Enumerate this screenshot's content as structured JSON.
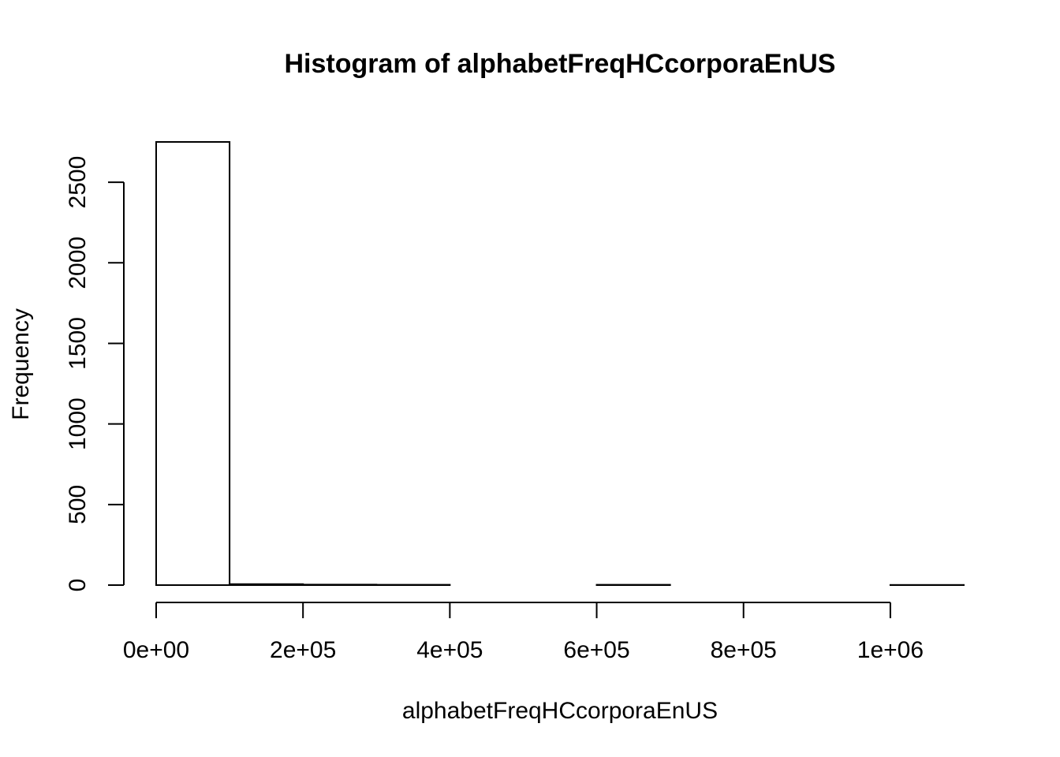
{
  "chart_data": {
    "type": "bar",
    "title": "Histogram of alphabetFreqHCcorporaEnUS",
    "xlabel": "alphabetFreqHCcorporaEnUS",
    "ylabel": "Frequency",
    "bin_width": 100000,
    "bins": [
      {
        "start": 0,
        "end": 100000,
        "count": 2750
      },
      {
        "start": 100000,
        "end": 200000,
        "count": 6
      },
      {
        "start": 200000,
        "end": 300000,
        "count": 3
      },
      {
        "start": 300000,
        "end": 400000,
        "count": 2
      },
      {
        "start": 400000,
        "end": 500000,
        "count": 0
      },
      {
        "start": 500000,
        "end": 600000,
        "count": 0
      },
      {
        "start": 600000,
        "end": 700000,
        "count": 2
      },
      {
        "start": 700000,
        "end": 800000,
        "count": 0
      },
      {
        "start": 800000,
        "end": 900000,
        "count": 0
      },
      {
        "start": 900000,
        "end": 1000000,
        "count": 0
      },
      {
        "start": 1000000,
        "end": 1100000,
        "count": 1
      }
    ],
    "xlim": [
      0,
      1100000
    ],
    "ylim": [
      0,
      2750
    ],
    "x_ticks": [
      {
        "value": 0,
        "label": "0e+00"
      },
      {
        "value": 200000,
        "label": "2e+05"
      },
      {
        "value": 400000,
        "label": "4e+05"
      },
      {
        "value": 600000,
        "label": "6e+05"
      },
      {
        "value": 800000,
        "label": "8e+05"
      },
      {
        "value": 1000000,
        "label": "1e+06"
      }
    ],
    "y_ticks": [
      {
        "value": 0,
        "label": "0"
      },
      {
        "value": 500,
        "label": "500"
      },
      {
        "value": 1000,
        "label": "1000"
      },
      {
        "value": 1500,
        "label": "1500"
      },
      {
        "value": 2000,
        "label": "2000"
      },
      {
        "value": 2500,
        "label": "2500"
      }
    ],
    "grid": false,
    "legend": "none",
    "bar_fill": "#ffffff",
    "bar_stroke": "#000000"
  }
}
